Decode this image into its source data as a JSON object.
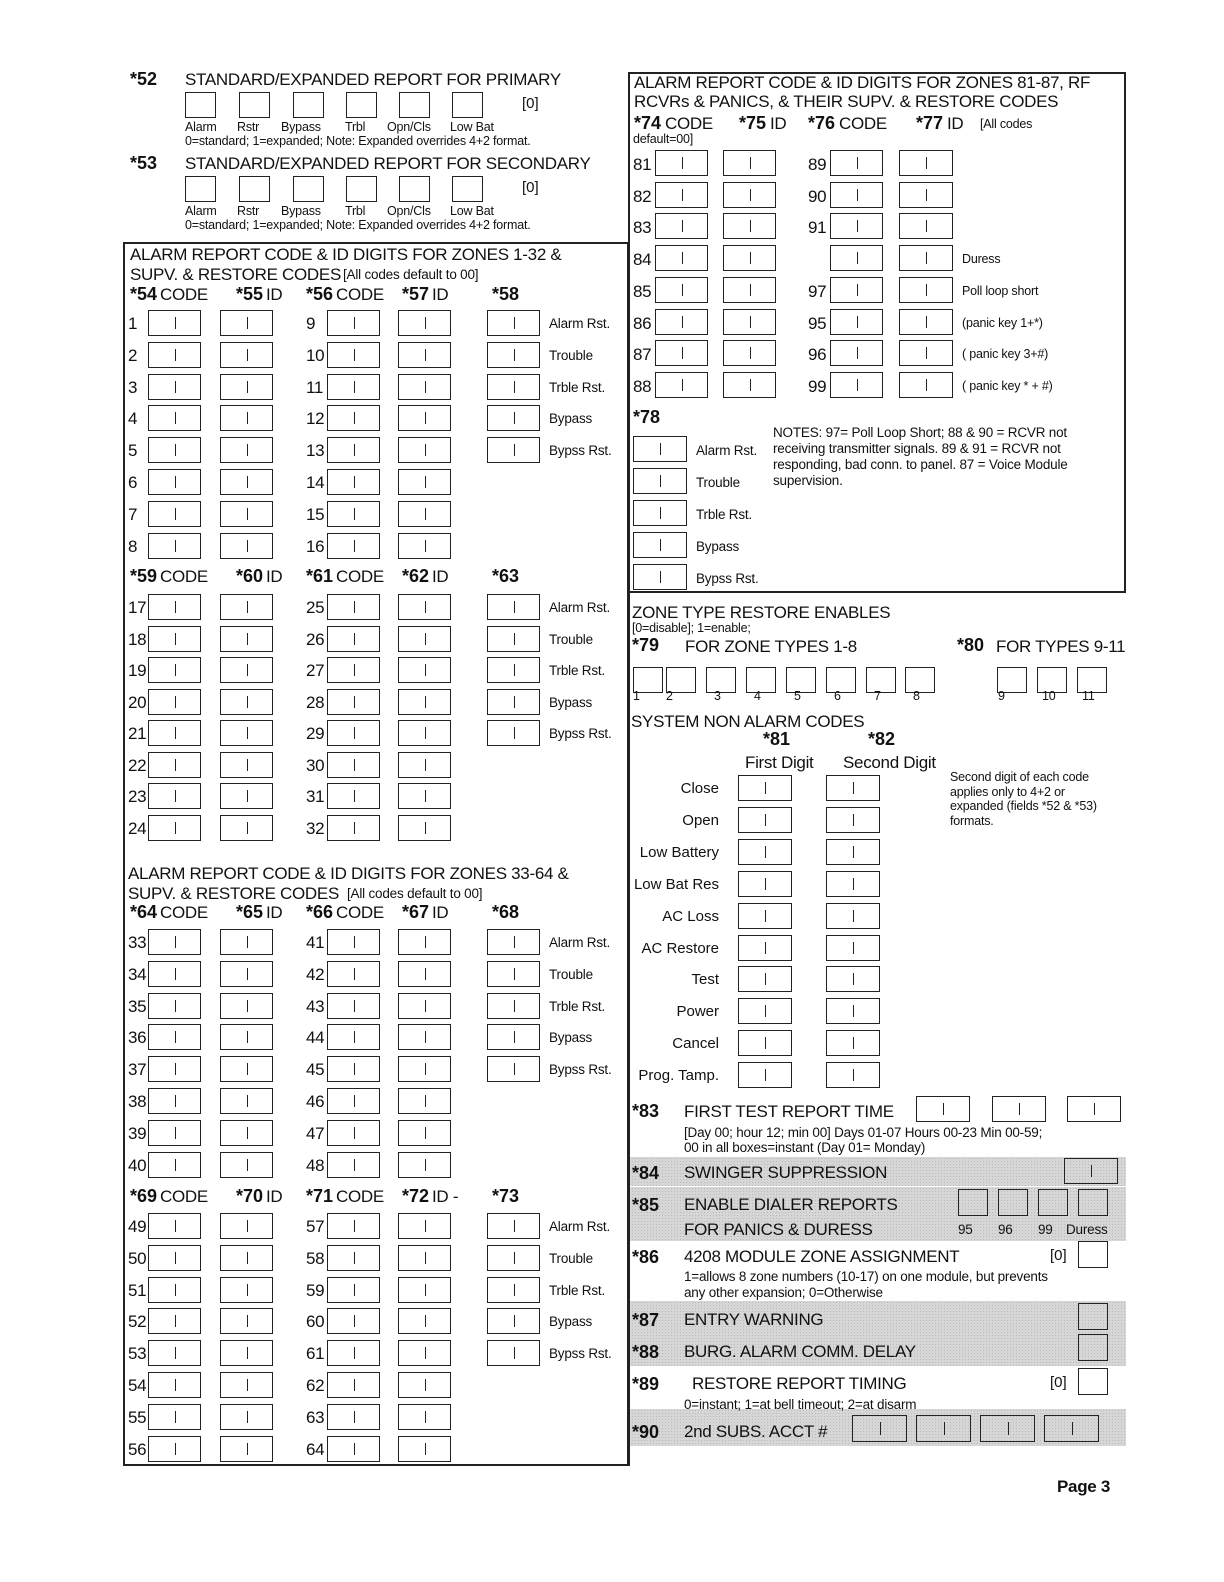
{
  "s52": {
    "code": "*52",
    "title": "STANDARD/EXPANDED REPORT FOR PRIMARY",
    "default": "[0]",
    "labels": [
      "Alarm",
      "Rstr",
      "Bypass",
      "Trbl",
      "Opn/Cls",
      "Low Bat"
    ],
    "note": "0=standard; 1=expanded;  Note: Expanded overrides 4+2 format."
  },
  "s53": {
    "code": "*53",
    "title": "STANDARD/EXPANDED REPORT  FOR SECONDARY",
    "default": "[0]",
    "labels": [
      "Alarm",
      "Rstr",
      "Bypass",
      "Trbl",
      "Opn/Cls",
      "Low Bat"
    ],
    "note": "0=standard; 1=expanded;  Note: Expanded overrides 4+2 format."
  },
  "zones_1_32": {
    "title_line1": "ALARM REPORT CODE & ID DIGITS FOR ZONES 1-32 &",
    "title_line2": "SUPV. & RESTORE CODES",
    "title_small": "[All codes default to 00]"
  },
  "zones_33_64": {
    "title_line1": "ALARM REPORT CODE & ID DIGITS FOR ZONES 33-64 &",
    "title_line2": "SUPV. & RESTORE CODES",
    "title_small": "[All codes default to 00]"
  },
  "supervision_labels": [
    "Alarm Rst.",
    "Trouble",
    "Trble Rst.",
    "Bypass",
    "Bypss Rst."
  ],
  "zone_groups": [
    {
      "headers": [
        {
          "code": "*54",
          "word": "CODE"
        },
        {
          "code": "*55",
          "word": "ID"
        },
        {
          "code": "*56",
          "word": "CODE"
        },
        {
          "code": "*57",
          "word": "ID"
        },
        {
          "code": "*58",
          "word": ""
        }
      ],
      "left_zones": [
        "1",
        "2",
        "3",
        "4",
        "5",
        "6",
        "7",
        "8"
      ],
      "right_zones": [
        "9",
        "10",
        "11",
        "12",
        "13",
        "14",
        "15",
        "16"
      ]
    },
    {
      "headers": [
        {
          "code": "*59",
          "word": "CODE"
        },
        {
          "code": "*60",
          "word": "ID"
        },
        {
          "code": "*61",
          "word": "CODE"
        },
        {
          "code": "*62",
          "word": "ID"
        },
        {
          "code": "*63",
          "word": ""
        }
      ],
      "left_zones": [
        "17",
        "18",
        "19",
        "20",
        "21",
        "22",
        "23",
        "24"
      ],
      "right_zones": [
        "25",
        "26",
        "27",
        "28",
        "29",
        "30",
        "31",
        "32"
      ]
    },
    {
      "headers": [
        {
          "code": "*64",
          "word": "CODE"
        },
        {
          "code": "*65",
          "word": "ID"
        },
        {
          "code": "*66",
          "word": "CODE"
        },
        {
          "code": "*67",
          "word": "ID"
        },
        {
          "code": "*68",
          "word": ""
        }
      ],
      "left_zones": [
        "33",
        "34",
        "35",
        "36",
        "37",
        "38",
        "39",
        "40"
      ],
      "right_zones": [
        "41",
        "42",
        "43",
        "44",
        "45",
        "46",
        "47",
        "48"
      ]
    },
    {
      "headers": [
        {
          "code": "*69",
          "word": "CODE"
        },
        {
          "code": "*70",
          "word": "ID"
        },
        {
          "code": "*71",
          "word": "CODE"
        },
        {
          "code": "*72",
          "word": "ID -"
        },
        {
          "code": "*73",
          "word": ""
        }
      ],
      "left_zones": [
        "49",
        "50",
        "51",
        "52",
        "53",
        "54",
        "55",
        "56"
      ],
      "right_zones": [
        "57",
        "58",
        "59",
        "60",
        "61",
        "62",
        "63",
        "64"
      ]
    }
  ],
  "rf": {
    "title_line1": "ALARM REPORT CODE & ID DIGITS FOR ZONES 81-87, RF",
    "title_line2": "RCVRs & PANICS, & THEIR SUPV. & RESTORE CODES",
    "headers": [
      {
        "code": "*74",
        "word": "CODE"
      },
      {
        "code": "*75",
        "word": "ID"
      },
      {
        "code": "*76",
        "word": "CODE"
      },
      {
        "code": "*77",
        "word": "ID"
      }
    ],
    "default_note_a": "[All  codes",
    "default_note_b": "default=00]",
    "left_zones": [
      "81",
      "82",
      "83",
      "84",
      "85",
      "86",
      "87",
      "88"
    ],
    "right_zones": [
      "89",
      "90",
      "91",
      "",
      "97",
      "95",
      "96",
      "99"
    ],
    "right_labels": [
      "",
      "",
      "",
      "Duress",
      "Poll loop short",
      "(panic key 1+*)",
      "( panic key 3+#)",
      "( panic key * + #)"
    ],
    "s78_code": "*78",
    "notes": [
      "NOTES: 97= Poll Loop Short; 88 & 90 = RCVR not",
      "receiving transmitter signals. 89 & 91 = RCVR not",
      "responding, bad conn. to panel. 87 = Voice Module",
      "supervision."
    ]
  },
  "zone_type_restore": {
    "title": "ZONE TYPE RESTORE ENABLES",
    "subtitle": "[0=disable]; 1=enable;",
    "s79_code": "*79",
    "s79_title": "FOR ZONE TYPES 1-8",
    "s80_code": "*80",
    "s80_title": "FOR TYPES 9-11",
    "types_1_8": [
      "1",
      "2",
      "3",
      "4",
      "5",
      "6",
      "7",
      "8"
    ],
    "types_9_11": [
      "9",
      "10",
      "11"
    ]
  },
  "non_alarm": {
    "title": "SYSTEM NON ALARM CODES",
    "s81_code": "*81",
    "s82_code": "*82",
    "first_digit": "First Digit",
    "second_digit": "Second Digit",
    "rows": [
      "Close",
      "Open",
      "Low Battery",
      "Low Bat Res",
      "AC Loss",
      "AC Restore",
      "Test",
      "Power",
      "Cancel",
      "Prog. Tamp."
    ],
    "note": [
      "Second digit of each code",
      "applies only  to 4+2 or",
      "expanded (fields *52 & *53)",
      "formats."
    ]
  },
  "s83": {
    "code": "*83",
    "title": "FIRST TEST REPORT TIME",
    "note1": "[Day 00; hour 12; min 00]   Days 01-07   Hours 00-23  Min 00-59;",
    "note2": "00 in all boxes=instant (Day 01= Monday)"
  },
  "s84": {
    "code": "*84",
    "title": "SWINGER SUPPRESSION"
  },
  "s85": {
    "code": "*85",
    "title1": "ENABLE DIALER REPORTS",
    "title2": "FOR PANICS & DURESS",
    "labels": [
      "95",
      "96",
      "99",
      "Duress"
    ]
  },
  "s86": {
    "code": "*86",
    "title": "4208 MODULE ZONE ASSIGNMENT",
    "default": "[0]",
    "note1": "1=allows 8 zone numbers (10-17) on one module, but prevents",
    "note2": "any other expansion; 0=Otherwise"
  },
  "s87": {
    "code": "*87",
    "title": "ENTRY WARNING"
  },
  "s88": {
    "code": "*88",
    "title": "BURG. ALARM COMM. DELAY"
  },
  "s89": {
    "code": "*89",
    "title": "RESTORE REPORT TIMING",
    "default": "[0]",
    "note": "0=instant; 1=at bell timeout; 2=at disarm"
  },
  "s90": {
    "code": "*90",
    "title": "2nd SUBS. ACCT #"
  },
  "footer": {
    "page": "Page  3"
  }
}
